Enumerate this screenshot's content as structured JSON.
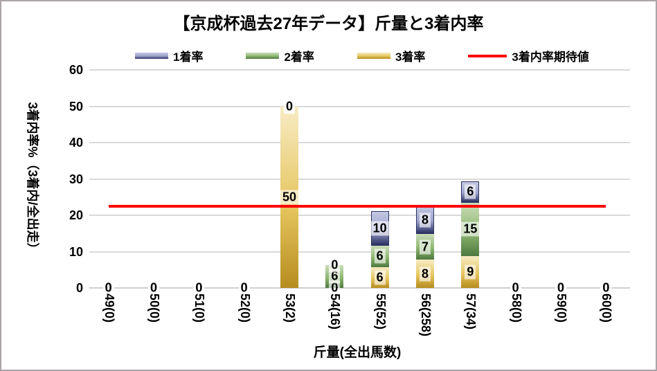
{
  "frame": {
    "background": "#ffffff",
    "border_color": "#aaa5a9"
  },
  "chart_data": {
    "type": "bar",
    "stacked": true,
    "title": "【京成杯過去27年データ】斤量と3着内率",
    "xlabel": "斤量(全出馬数)",
    "ylabel": "3着内率%（3着内/全出走）",
    "ylim": [
      0,
      60
    ],
    "yticks": [
      0,
      10,
      20,
      30,
      40,
      50,
      60
    ],
    "grid": "horizontal",
    "legend_position": "top",
    "gridline_color": "#d9d9d9",
    "categories": [
      "49(0)",
      "50(0)",
      "51(0)",
      "52(0)",
      "53(2)",
      "54(16)",
      "55(52)",
      "56(258)",
      "57(34)",
      "58(0)",
      "59(0)",
      "60(0)"
    ],
    "series": [
      {
        "id": "third-place-rate",
        "name": "3着率",
        "values": [
          0,
          0,
          0,
          0,
          50,
          0,
          5.8,
          7.8,
          8.8,
          0,
          0,
          0
        ],
        "labels": [
          "0",
          "0",
          "0",
          "0",
          "50",
          "0",
          "6",
          "8",
          "9",
          "0",
          "0",
          "0"
        ],
        "colors": [
          "#F7EBC4",
          "#E6C65F",
          "#B68C1E"
        ]
      },
      {
        "id": "second-place-rate",
        "name": "2着率",
        "values": [
          0,
          0,
          0,
          0,
          0,
          6.3,
          5.8,
          7.0,
          14.7,
          0,
          0,
          0
        ],
        "labels": [
          "0",
          "0",
          "0",
          "0",
          "0",
          "6",
          "6",
          "7",
          "15",
          "0",
          "0",
          "0"
        ],
        "colors": [
          "#CADEB9",
          "#8FB671",
          "#4E7A3F"
        ]
      },
      {
        "id": "first-place-rate",
        "name": "1着率",
        "values": [
          0,
          0,
          0,
          0,
          0,
          0,
          9.6,
          7.8,
          5.9,
          0,
          0,
          0
        ],
        "labels": [
          "0",
          "0",
          "0",
          "0",
          "0",
          "0",
          "10",
          "8",
          "6",
          "0",
          "0",
          "0"
        ],
        "colors": [
          "#C3C7E2",
          "#9EA4CD",
          "#2B3162"
        ],
        "border": "#2B3162"
      }
    ],
    "reference_line": {
      "label": "3着内率期待値",
      "value": 22.4,
      "color": "#FE0000"
    },
    "legend": [
      {
        "label": "1着率",
        "swatch": "bar",
        "series_id": "first-place-rate"
      },
      {
        "label": "2着率",
        "swatch": "bar",
        "series_id": "second-place-rate"
      },
      {
        "label": "3着率",
        "swatch": "bar",
        "series_id": "third-place-rate"
      },
      {
        "label": "3着内率期待値",
        "swatch": "line",
        "color": "#FE0000"
      }
    ]
  }
}
